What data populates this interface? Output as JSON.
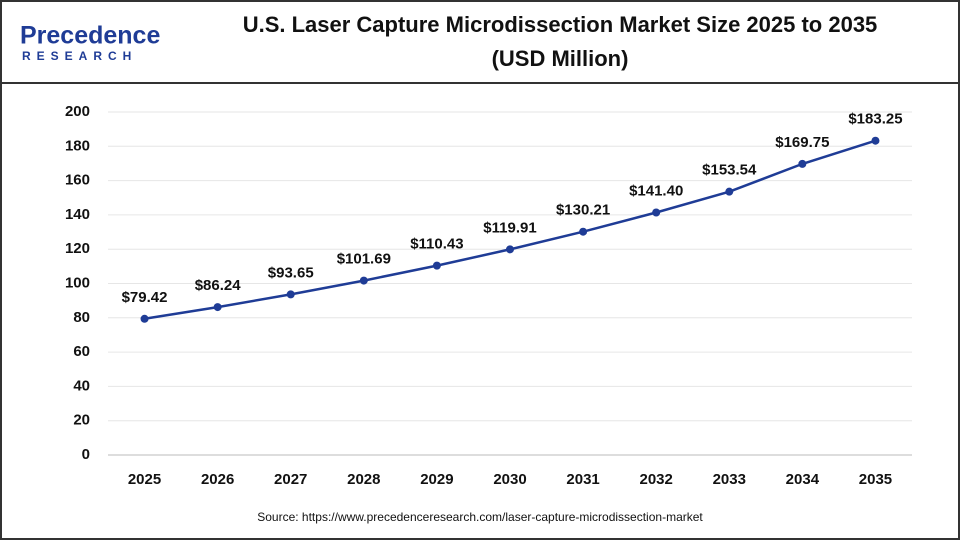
{
  "logo": {
    "name": "Precedence",
    "tagline": "RESEARCH"
  },
  "chart_data": {
    "type": "line",
    "title": [
      "U.S. Laser Capture Microdissection Market Size 2025 to 2035",
      "(USD Million)"
    ],
    "categories": [
      "2025",
      "2026",
      "2027",
      "2028",
      "2029",
      "2030",
      "2031",
      "2032",
      "2033",
      "2034",
      "2035"
    ],
    "values": [
      79.42,
      86.24,
      93.65,
      101.69,
      110.43,
      119.91,
      130.21,
      141.4,
      153.54,
      169.75,
      183.25
    ],
    "value_labels": [
      "$79.42",
      "$86.24",
      "$93.65",
      "$101.69",
      "$110.43",
      "$119.91",
      "$130.21",
      "$141.40",
      "$153.54",
      "$169.75",
      "$183.25"
    ],
    "color": "#1f3c96",
    "ylim": [
      0,
      200
    ],
    "yticks": [
      0,
      20,
      40,
      60,
      80,
      100,
      120,
      140,
      160,
      180,
      200
    ],
    "grid": true,
    "source": "Source: https://www.precedenceresearch.com/laser-capture-microdissection-market"
  }
}
